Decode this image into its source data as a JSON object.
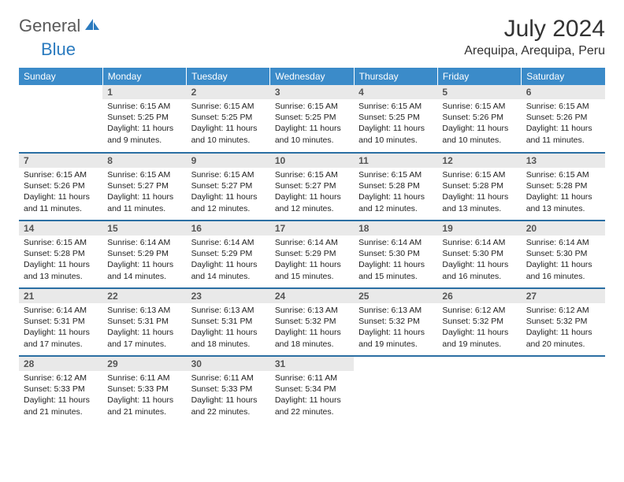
{
  "brand": {
    "part1": "General",
    "part2": "Blue",
    "logo_color": "#2b7bbf",
    "text_color": "#5a5a5a"
  },
  "title": "July 2024",
  "location": "Arequipa, Arequipa, Peru",
  "colors": {
    "header_bg": "#3b8bc9",
    "row_divider": "#2b6fa3",
    "daynum_bg": "#e9e9e9",
    "page_bg": "#ffffff"
  },
  "fonts": {
    "title_size": 30,
    "location_size": 16,
    "header_size": 12,
    "body_size": 10.5
  },
  "weekdays": [
    "Sunday",
    "Monday",
    "Tuesday",
    "Wednesday",
    "Thursday",
    "Friday",
    "Saturday"
  ],
  "weeks": [
    [
      {
        "empty": true
      },
      {
        "n": "1",
        "sr": "Sunrise: 6:15 AM",
        "ss": "Sunset: 5:25 PM",
        "dl": "Daylight: 11 hours and 9 minutes."
      },
      {
        "n": "2",
        "sr": "Sunrise: 6:15 AM",
        "ss": "Sunset: 5:25 PM",
        "dl": "Daylight: 11 hours and 10 minutes."
      },
      {
        "n": "3",
        "sr": "Sunrise: 6:15 AM",
        "ss": "Sunset: 5:25 PM",
        "dl": "Daylight: 11 hours and 10 minutes."
      },
      {
        "n": "4",
        "sr": "Sunrise: 6:15 AM",
        "ss": "Sunset: 5:25 PM",
        "dl": "Daylight: 11 hours and 10 minutes."
      },
      {
        "n": "5",
        "sr": "Sunrise: 6:15 AM",
        "ss": "Sunset: 5:26 PM",
        "dl": "Daylight: 11 hours and 10 minutes."
      },
      {
        "n": "6",
        "sr": "Sunrise: 6:15 AM",
        "ss": "Sunset: 5:26 PM",
        "dl": "Daylight: 11 hours and 11 minutes."
      }
    ],
    [
      {
        "n": "7",
        "sr": "Sunrise: 6:15 AM",
        "ss": "Sunset: 5:26 PM",
        "dl": "Daylight: 11 hours and 11 minutes."
      },
      {
        "n": "8",
        "sr": "Sunrise: 6:15 AM",
        "ss": "Sunset: 5:27 PM",
        "dl": "Daylight: 11 hours and 11 minutes."
      },
      {
        "n": "9",
        "sr": "Sunrise: 6:15 AM",
        "ss": "Sunset: 5:27 PM",
        "dl": "Daylight: 11 hours and 12 minutes."
      },
      {
        "n": "10",
        "sr": "Sunrise: 6:15 AM",
        "ss": "Sunset: 5:27 PM",
        "dl": "Daylight: 11 hours and 12 minutes."
      },
      {
        "n": "11",
        "sr": "Sunrise: 6:15 AM",
        "ss": "Sunset: 5:28 PM",
        "dl": "Daylight: 11 hours and 12 minutes."
      },
      {
        "n": "12",
        "sr": "Sunrise: 6:15 AM",
        "ss": "Sunset: 5:28 PM",
        "dl": "Daylight: 11 hours and 13 minutes."
      },
      {
        "n": "13",
        "sr": "Sunrise: 6:15 AM",
        "ss": "Sunset: 5:28 PM",
        "dl": "Daylight: 11 hours and 13 minutes."
      }
    ],
    [
      {
        "n": "14",
        "sr": "Sunrise: 6:15 AM",
        "ss": "Sunset: 5:28 PM",
        "dl": "Daylight: 11 hours and 13 minutes."
      },
      {
        "n": "15",
        "sr": "Sunrise: 6:14 AM",
        "ss": "Sunset: 5:29 PM",
        "dl": "Daylight: 11 hours and 14 minutes."
      },
      {
        "n": "16",
        "sr": "Sunrise: 6:14 AM",
        "ss": "Sunset: 5:29 PM",
        "dl": "Daylight: 11 hours and 14 minutes."
      },
      {
        "n": "17",
        "sr": "Sunrise: 6:14 AM",
        "ss": "Sunset: 5:29 PM",
        "dl": "Daylight: 11 hours and 15 minutes."
      },
      {
        "n": "18",
        "sr": "Sunrise: 6:14 AM",
        "ss": "Sunset: 5:30 PM",
        "dl": "Daylight: 11 hours and 15 minutes."
      },
      {
        "n": "19",
        "sr": "Sunrise: 6:14 AM",
        "ss": "Sunset: 5:30 PM",
        "dl": "Daylight: 11 hours and 16 minutes."
      },
      {
        "n": "20",
        "sr": "Sunrise: 6:14 AM",
        "ss": "Sunset: 5:30 PM",
        "dl": "Daylight: 11 hours and 16 minutes."
      }
    ],
    [
      {
        "n": "21",
        "sr": "Sunrise: 6:14 AM",
        "ss": "Sunset: 5:31 PM",
        "dl": "Daylight: 11 hours and 17 minutes."
      },
      {
        "n": "22",
        "sr": "Sunrise: 6:13 AM",
        "ss": "Sunset: 5:31 PM",
        "dl": "Daylight: 11 hours and 17 minutes."
      },
      {
        "n": "23",
        "sr": "Sunrise: 6:13 AM",
        "ss": "Sunset: 5:31 PM",
        "dl": "Daylight: 11 hours and 18 minutes."
      },
      {
        "n": "24",
        "sr": "Sunrise: 6:13 AM",
        "ss": "Sunset: 5:32 PM",
        "dl": "Daylight: 11 hours and 18 minutes."
      },
      {
        "n": "25",
        "sr": "Sunrise: 6:13 AM",
        "ss": "Sunset: 5:32 PM",
        "dl": "Daylight: 11 hours and 19 minutes."
      },
      {
        "n": "26",
        "sr": "Sunrise: 6:12 AM",
        "ss": "Sunset: 5:32 PM",
        "dl": "Daylight: 11 hours and 19 minutes."
      },
      {
        "n": "27",
        "sr": "Sunrise: 6:12 AM",
        "ss": "Sunset: 5:32 PM",
        "dl": "Daylight: 11 hours and 20 minutes."
      }
    ],
    [
      {
        "n": "28",
        "sr": "Sunrise: 6:12 AM",
        "ss": "Sunset: 5:33 PM",
        "dl": "Daylight: 11 hours and 21 minutes."
      },
      {
        "n": "29",
        "sr": "Sunrise: 6:11 AM",
        "ss": "Sunset: 5:33 PM",
        "dl": "Daylight: 11 hours and 21 minutes."
      },
      {
        "n": "30",
        "sr": "Sunrise: 6:11 AM",
        "ss": "Sunset: 5:33 PM",
        "dl": "Daylight: 11 hours and 22 minutes."
      },
      {
        "n": "31",
        "sr": "Sunrise: 6:11 AM",
        "ss": "Sunset: 5:34 PM",
        "dl": "Daylight: 11 hours and 22 minutes."
      },
      {
        "empty": true
      },
      {
        "empty": true
      },
      {
        "empty": true
      }
    ]
  ]
}
